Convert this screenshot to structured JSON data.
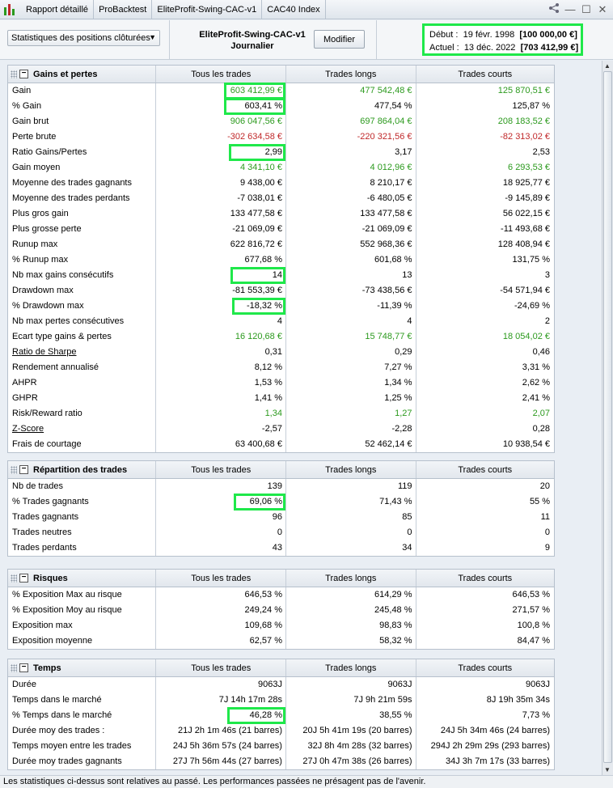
{
  "tabs": [
    "Rapport détaillé",
    "ProBacktest",
    "EliteProfit-Swing-CAC-v1",
    "CAC40 Index"
  ],
  "header": {
    "dropdown_value": "Statistiques des positions clôturées",
    "strategy_name": "EliteProfit-Swing-CAC-v1",
    "period": "Journalier",
    "modify_label": "Modifier",
    "start_label": "Début :",
    "start_date": "19 févr. 1998",
    "start_value": "[100 000,00 €]",
    "current_label": "Actuel :",
    "current_date": "13 déc. 2022",
    "current_value": "[703 412,99 €]"
  },
  "columns": [
    "Tous les trades",
    "Trades longs",
    "Trades courts"
  ],
  "sections": [
    {
      "title": "Gains et pertes",
      "rows": [
        {
          "label": "Gain",
          "values": [
            "603 412,99 €",
            "477 542,48 €",
            "125 870,51 €"
          ],
          "color": "green",
          "highlight": true
        },
        {
          "label": "% Gain",
          "values": [
            "603,41 %",
            "477,54 %",
            "125,87 %"
          ],
          "highlight": true
        },
        {
          "label": "Gain brut",
          "values": [
            "906 047,56 €",
            "697 864,04 €",
            "208 183,52 €"
          ],
          "color": "green"
        },
        {
          "label": "Perte brute",
          "values": [
            "-302 634,58 €",
            "-220 321,56 €",
            "-82 313,02 €"
          ],
          "color": "red"
        },
        {
          "label": "Ratio Gains/Pertes",
          "values": [
            "2,99",
            "3,17",
            "2,53"
          ],
          "highlight": true
        },
        {
          "label": "Gain moyen",
          "values": [
            "4 341,10 €",
            "4 012,96 €",
            "6 293,53 €"
          ],
          "color": "green"
        },
        {
          "label": "Moyenne des trades gagnants",
          "values": [
            "9 438,00 €",
            "8 210,17 €",
            "18 925,77 €"
          ]
        },
        {
          "label": "Moyenne des trades perdants",
          "values": [
            "-7 038,01 €",
            "-6 480,05 €",
            "-9 145,89 €"
          ]
        },
        {
          "label": "Plus gros gain",
          "values": [
            "133 477,58 €",
            "133 477,58 €",
            "56 022,15 €"
          ]
        },
        {
          "label": "Plus grosse perte",
          "values": [
            "-21 069,09 €",
            "-21 069,09 €",
            "-11 493,68 €"
          ]
        },
        {
          "label": "Runup max",
          "values": [
            "622 816,72 €",
            "552 968,36 €",
            "128 408,94 €"
          ]
        },
        {
          "label": "% Runup max",
          "values": [
            "677,68 %",
            "601,68 %",
            "131,75 %"
          ]
        },
        {
          "label": "Nb max gains consécutifs",
          "values": [
            "14",
            "13",
            "3"
          ],
          "highlight": true
        },
        {
          "label": "Drawdown max",
          "values": [
            "-81 553,39 €",
            "-73 438,56 €",
            "-54 571,94 €"
          ]
        },
        {
          "label": "% Drawdown max",
          "values": [
            "-18,32 %",
            "-11,39 %",
            "-24,69 %"
          ],
          "highlight": true
        },
        {
          "label": "Nb max pertes consécutives",
          "values": [
            "4",
            "4",
            "2"
          ]
        },
        {
          "label": "Ecart type gains & pertes",
          "values": [
            "16 120,68 €",
            "15 748,77 €",
            "18 054,02 €"
          ],
          "color": "green"
        },
        {
          "label": "Ratio de Sharpe",
          "values": [
            "0,31",
            "0,29",
            "0,46"
          ],
          "underline": true
        },
        {
          "label": "Rendement annualisé",
          "values": [
            "8,12 %",
            "7,27 %",
            "3,31 %"
          ]
        },
        {
          "label": "AHPR",
          "values": [
            "1,53 %",
            "1,34 %",
            "2,62 %"
          ]
        },
        {
          "label": "GHPR",
          "values": [
            "1,41 %",
            "1,25 %",
            "2,41 %"
          ]
        },
        {
          "label": "Risk/Reward ratio",
          "values": [
            "1,34",
            "1,27",
            "2,07"
          ],
          "color": "green"
        },
        {
          "label": "Z-Score",
          "values": [
            "-2,57",
            "-2,28",
            "0,28"
          ],
          "underline": true
        },
        {
          "label": "Frais de courtage",
          "values": [
            "63 400,68 €",
            "52 462,14 €",
            "10 938,54 €"
          ]
        }
      ]
    },
    {
      "title": "Répartition des trades",
      "rows": [
        {
          "label": "Nb de trades",
          "values": [
            "139",
            "119",
            "20"
          ]
        },
        {
          "label": "% Trades gagnants",
          "values": [
            "69,06 %",
            "71,43 %",
            "55 %"
          ],
          "highlight": true
        },
        {
          "label": "Trades gagnants",
          "values": [
            "96",
            "85",
            "11"
          ]
        },
        {
          "label": "Trades neutres",
          "values": [
            "0",
            "0",
            "0"
          ]
        },
        {
          "label": "Trades perdants",
          "values": [
            "43",
            "34",
            "9"
          ]
        }
      ]
    },
    {
      "title": "Risques",
      "rows": [
        {
          "label": "% Exposition Max au risque",
          "values": [
            "646,53 %",
            "614,29 %",
            "646,53 %"
          ]
        },
        {
          "label": "% Exposition Moy au risque",
          "values": [
            "249,24 %",
            "245,48 %",
            "271,57 %"
          ]
        },
        {
          "label": "Exposition max",
          "values": [
            "109,68 %",
            "98,83 %",
            "100,8 %"
          ]
        },
        {
          "label": "Exposition moyenne",
          "values": [
            "62,57 %",
            "58,32 %",
            "84,47 %"
          ]
        }
      ]
    },
    {
      "title": "Temps",
      "rows": [
        {
          "label": "Durée",
          "values": [
            "9063J",
            "9063J",
            "9063J"
          ]
        },
        {
          "label": "Temps dans le marché",
          "values": [
            "7J 14h 17m 28s",
            "7J 9h 21m 59s",
            "8J 19h 35m 34s"
          ]
        },
        {
          "label": "% Temps dans le marché",
          "values": [
            "46,28 %",
            "38,55 %",
            "7,73 %"
          ],
          "highlight": true
        },
        {
          "label": "Durée moy des trades :",
          "values": [
            "21J 2h 1m 46s (21 barres)",
            "20J 5h 41m 19s (20 barres)",
            "24J 5h 34m 46s (24 barres)"
          ]
        },
        {
          "label": "Temps moyen entre les trades",
          "values": [
            "24J 5h 36m 57s (24 barres)",
            "32J 8h 4m 28s (32 barres)",
            "294J 2h 29m 29s (293 barres)"
          ]
        },
        {
          "label": "Durée moy trades gagnants",
          "values": [
            "27J 7h 56m 44s (27 barres)",
            "27J 0h 47m 38s (26 barres)",
            "34J 3h 7m 17s (33 barres)"
          ]
        }
      ]
    }
  ],
  "footer": "Les statistiques ci-dessus sont relatives au passé. Les performances passées ne présagent pas de l'avenir.",
  "colors": {
    "highlight": "#1fe84a",
    "positive": "#2c9a1e",
    "negative": "#c0282a"
  }
}
